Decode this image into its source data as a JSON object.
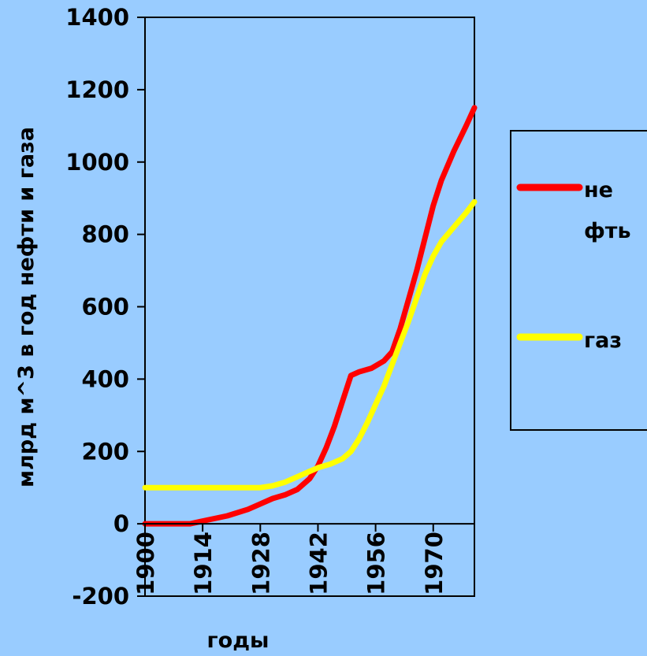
{
  "chart_data": {
    "type": "line",
    "title": "",
    "xlabel": "годы",
    "ylabel": "млрд м^3 в год нефти и газа",
    "ylim": [
      -200,
      1400
    ],
    "xlim": [
      1900,
      1980
    ],
    "y_ticks": [
      "1400",
      "1200",
      "1000",
      "800",
      "600",
      "400",
      "200",
      "0",
      "-200"
    ],
    "y_tick_values": [
      1400,
      1200,
      1000,
      800,
      600,
      400,
      200,
      0,
      -200
    ],
    "x_ticks": [
      "1900",
      "1914",
      "1928",
      "1942",
      "1956",
      "1970"
    ],
    "x_tick_values": [
      1900,
      1914,
      1928,
      1942,
      1956,
      1970
    ],
    "grid": false,
    "legend_position": "right",
    "series": [
      {
        "name": "не фть",
        "name_lines": [
          "не",
          "фть"
        ],
        "color": "#ff0000",
        "x": [
          1900,
          1904,
          1908,
          1911,
          1915,
          1920,
          1925,
          1928,
          1931,
          1934,
          1937,
          1940,
          1942,
          1944,
          1946,
          1948,
          1950,
          1952,
          1955,
          1958,
          1960,
          1962,
          1964,
          1966,
          1968,
          1970,
          1972,
          1975,
          1978,
          1980
        ],
        "y": [
          0,
          0,
          0,
          0,
          10,
          22,
          40,
          55,
          70,
          80,
          95,
          125,
          160,
          210,
          270,
          340,
          410,
          420,
          430,
          450,
          475,
          540,
          620,
          700,
          790,
          880,
          950,
          1030,
          1100,
          1150
        ]
      },
      {
        "name": "газ",
        "color": "#ffff00",
        "x": [
          1900,
          1905,
          1910,
          1915,
          1920,
          1925,
          1928,
          1931,
          1934,
          1937,
          1940,
          1942,
          1945,
          1948,
          1950,
          1952,
          1954,
          1956,
          1958,
          1960,
          1962,
          1964,
          1966,
          1968,
          1970,
          1972,
          1975,
          1978,
          1980
        ],
        "y": [
          100,
          100,
          100,
          100,
          100,
          100,
          100,
          105,
          115,
          130,
          145,
          155,
          165,
          180,
          200,
          235,
          280,
          330,
          380,
          440,
          500,
          560,
          625,
          690,
          740,
          780,
          820,
          860,
          890
        ]
      }
    ]
  }
}
